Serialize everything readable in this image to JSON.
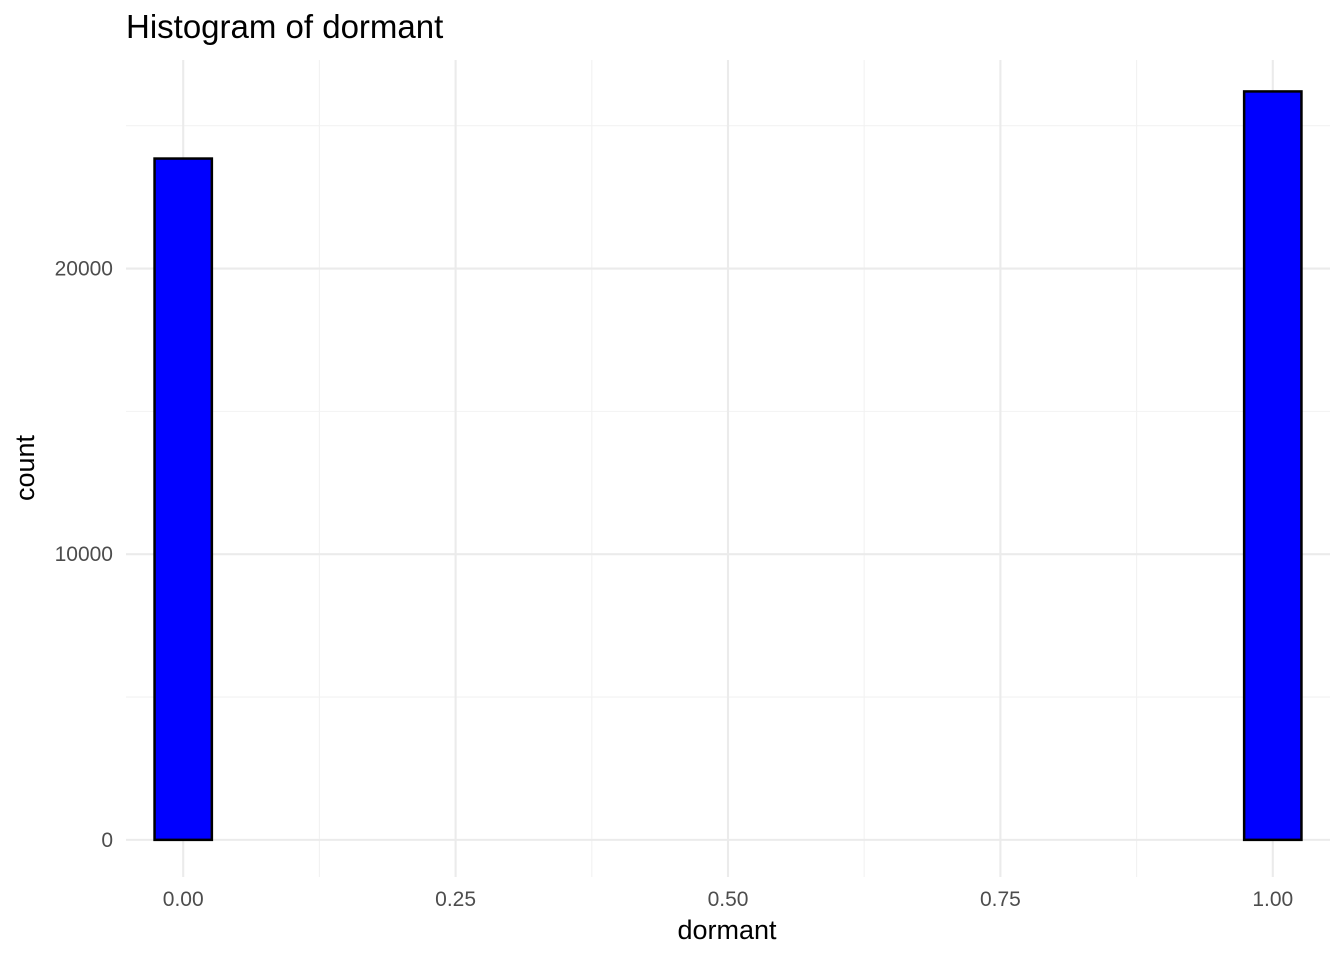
{
  "chart_data": {
    "type": "bar",
    "title": "Histogram of dormant",
    "xlabel": "dormant",
    "ylabel": "count",
    "xlim": [
      -0.0525,
      1.0525
    ],
    "ylim": [
      -1300,
      27300
    ],
    "x_ticks": [
      0.0,
      0.25,
      0.5,
      0.75,
      1.0
    ],
    "x_tick_labels": [
      "0.00",
      "0.25",
      "0.50",
      "0.75",
      "1.00"
    ],
    "y_ticks": [
      0,
      10000,
      20000
    ],
    "y_tick_labels": [
      "0",
      "10000",
      "20000"
    ],
    "x_minor_ticks": [
      0.125,
      0.375,
      0.625,
      0.875
    ],
    "y_minor_ticks": [
      5000,
      15000,
      25000
    ],
    "grid": true,
    "legend": false,
    "bin_width": 0.0526,
    "bins": [
      {
        "x": 0.0,
        "count": 23850
      },
      {
        "x": 0.0526,
        "count": 0
      },
      {
        "x": 0.1053,
        "count": 0
      },
      {
        "x": 0.1579,
        "count": 0
      },
      {
        "x": 0.2105,
        "count": 0
      },
      {
        "x": 0.2632,
        "count": 0
      },
      {
        "x": 0.3158,
        "count": 0
      },
      {
        "x": 0.3684,
        "count": 0
      },
      {
        "x": 0.4211,
        "count": 0
      },
      {
        "x": 0.4737,
        "count": 0
      },
      {
        "x": 0.5263,
        "count": 0
      },
      {
        "x": 0.5789,
        "count": 0
      },
      {
        "x": 0.6316,
        "count": 0
      },
      {
        "x": 0.6842,
        "count": 0
      },
      {
        "x": 0.7368,
        "count": 0
      },
      {
        "x": 0.7895,
        "count": 0
      },
      {
        "x": 0.8421,
        "count": 0
      },
      {
        "x": 0.8947,
        "count": 0
      },
      {
        "x": 0.9474,
        "count": 0
      },
      {
        "x": 1.0,
        "count": 26200
      }
    ],
    "fill_color": "#0000FF",
    "outline_color": "#000000"
  }
}
